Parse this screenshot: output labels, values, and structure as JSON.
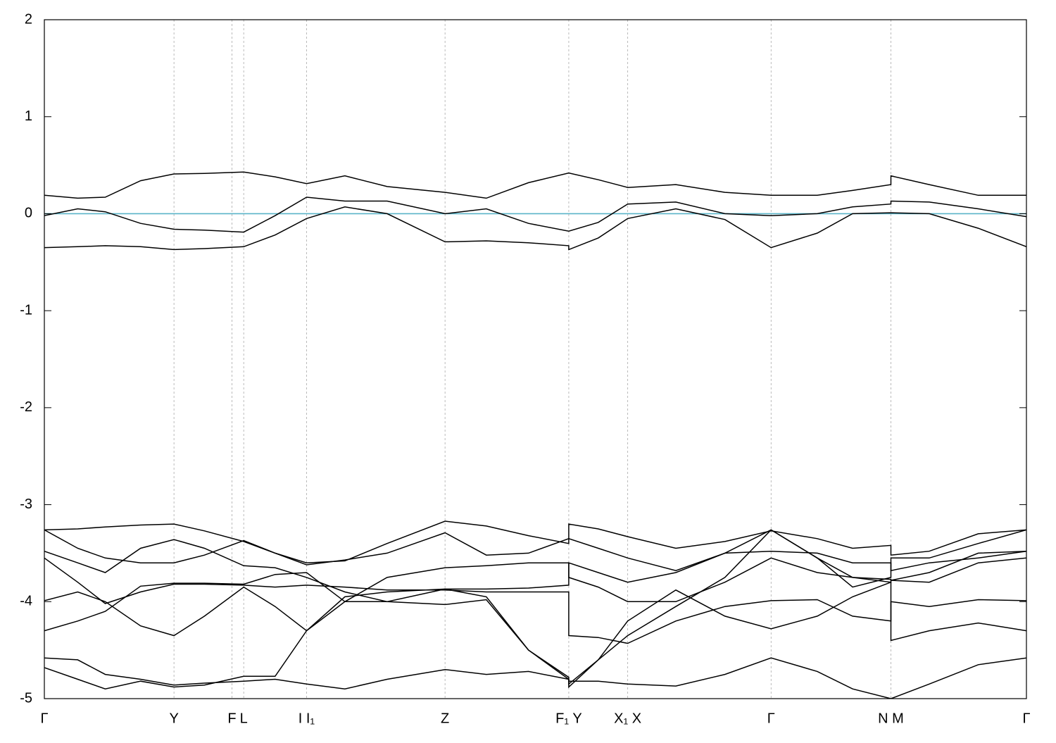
{
  "chart_data": {
    "type": "line",
    "x": [
      0,
      0.034,
      0.062,
      0.098,
      0.132,
      0.163,
      0.203,
      0.235,
      0.267,
      0.306,
      0.349,
      0.408,
      0.45,
      0.493,
      0.534,
      0.534,
      0.564,
      0.594,
      0.643,
      0.693,
      0.74,
      0.787,
      0.823,
      0.862,
      0.862,
      0.901,
      0.951,
      1
    ],
    "xlim": [
      0,
      1
    ],
    "xticks": [
      {
        "value": 0,
        "label": "Γ"
      },
      {
        "value": 0.132,
        "label": "Y"
      },
      {
        "value": 0.191,
        "label": "F"
      },
      {
        "value": 0.203,
        "label": "L"
      },
      {
        "value": 0.267,
        "label": "I  I₁"
      },
      {
        "value": 0.408,
        "label": "Z"
      },
      {
        "value": 0.534,
        "label": "F₁ Y"
      },
      {
        "value": 0.594,
        "label": "X₁ X"
      },
      {
        "value": 0.74,
        "label": "Γ"
      },
      {
        "value": 0.862,
        "label": "N M"
      },
      {
        "value": 1,
        "label": "Γ"
      }
    ],
    "ylim": [
      -5,
      2
    ],
    "yticks": [
      -5,
      -4,
      -3,
      -2,
      -1,
      0,
      1,
      2
    ],
    "grid": true,
    "hlines": [
      {
        "value": 0,
        "color": "#5ab4c8"
      }
    ],
    "series": [
      {
        "color": "#000000",
        "values": [
          0.19,
          0.16,
          0.17,
          0.34,
          0.41,
          0.415,
          0.43,
          0.38,
          0.31,
          0.39,
          0.28,
          0.22,
          0.16,
          0.32,
          0.42,
          0.42,
          0.35,
          0.27,
          0.3,
          0.22,
          0.19,
          0.19,
          0.24,
          0.3,
          0.39,
          0.3,
          0.19,
          0.19
        ]
      },
      {
        "color": "#000000",
        "values": [
          -0.02,
          0.05,
          0.02,
          -0.1,
          -0.16,
          -0.17,
          -0.19,
          -0.02,
          0.17,
          0.13,
          0.13,
          0.0,
          0.05,
          -0.1,
          -0.18,
          -0.18,
          -0.09,
          0.1,
          0.12,
          0.0,
          -0.02,
          0.0,
          0.07,
          0.1,
          0.13,
          0.12,
          0.05,
          -0.03
        ]
      },
      {
        "color": "#000000",
        "values": [
          -0.35,
          -0.34,
          -0.33,
          -0.34,
          -0.37,
          -0.36,
          -0.34,
          -0.22,
          -0.05,
          0.07,
          0.0,
          -0.29,
          -0.28,
          -0.3,
          -0.33,
          -0.37,
          -0.25,
          -0.05,
          0.05,
          -0.06,
          -0.35,
          -0.2,
          0.0,
          0.01,
          0.01,
          0.0,
          -0.15,
          -0.34
        ]
      },
      {
        "color": "#000000",
        "values": [
          -3.26,
          -3.25,
          -3.23,
          -3.21,
          -3.2,
          -3.27,
          -3.38,
          -3.5,
          -3.6,
          -3.58,
          -3.4,
          -3.17,
          -3.22,
          -3.32,
          -3.4,
          -3.2,
          -3.25,
          -3.33,
          -3.45,
          -3.38,
          -3.27,
          -3.35,
          -3.45,
          -3.42,
          -3.52,
          -3.48,
          -3.3,
          -3.26
        ]
      },
      {
        "color": "#000000",
        "values": [
          -3.26,
          -3.45,
          -3.55,
          -3.6,
          -3.6,
          -3.52,
          -3.37,
          -3.5,
          -3.62,
          -3.57,
          -3.5,
          -3.29,
          -3.52,
          -3.5,
          -3.35,
          -3.35,
          -3.45,
          -3.55,
          -3.68,
          -3.5,
          -3.26,
          -3.55,
          -3.85,
          -3.75,
          -3.55,
          -3.55,
          -3.4,
          -3.26
        ]
      },
      {
        "color": "#000000",
        "values": [
          -3.48,
          -3.6,
          -3.7,
          -3.45,
          -3.36,
          -3.45,
          -3.63,
          -3.65,
          -3.75,
          -3.9,
          -4.0,
          -3.87,
          -3.87,
          -3.86,
          -3.83,
          -3.6,
          -3.7,
          -3.8,
          -3.7,
          -3.5,
          -3.48,
          -3.5,
          -3.6,
          -3.6,
          -3.68,
          -3.6,
          -3.55,
          -3.48
        ]
      },
      {
        "color": "#000000",
        "values": [
          -3.55,
          -3.8,
          -4.02,
          -3.9,
          -3.82,
          -3.82,
          -3.83,
          -3.85,
          -3.83,
          -3.85,
          -3.88,
          -3.88,
          -3.9,
          -3.9,
          -3.9,
          -4.35,
          -4.37,
          -4.43,
          -4.2,
          -4.05,
          -3.99,
          -3.98,
          -4.15,
          -4.2,
          -4.0,
          -4.05,
          -3.98,
          -3.99
        ]
      },
      {
        "color": "#000000",
        "values": [
          -3.99,
          -3.9,
          -4.0,
          -4.25,
          -4.35,
          -4.15,
          -3.85,
          -4.05,
          -4.3,
          -4.0,
          -3.75,
          -3.65,
          -3.63,
          -3.6,
          -3.6,
          -3.75,
          -3.85,
          -4.0,
          -4.0,
          -3.8,
          -3.55,
          -3.7,
          -3.75,
          -3.77,
          -3.78,
          -3.8,
          -3.6,
          -3.55
        ]
      },
      {
        "color": "#000000",
        "values": [
          -4.3,
          -4.2,
          -4.1,
          -3.84,
          -3.81,
          -3.81,
          -3.82,
          -3.72,
          -3.7,
          -4.0,
          -4.0,
          -4.03,
          -3.98,
          -4.5,
          -4.78,
          -4.85,
          -4.6,
          -4.2,
          -3.88,
          -4.15,
          -4.28,
          -4.15,
          -3.95,
          -3.8,
          -4.4,
          -4.3,
          -4.22,
          -4.3
        ]
      },
      {
        "color": "#000000",
        "values": [
          -4.58,
          -4.6,
          -4.75,
          -4.8,
          -4.86,
          -4.84,
          -4.82,
          -4.8,
          -4.85,
          -4.9,
          -4.8,
          -4.7,
          -4.75,
          -4.72,
          -4.8,
          -4.82,
          -4.82,
          -4.85,
          -4.87,
          -4.75,
          -4.58,
          -4.72,
          -4.9,
          -5.0,
          -5.0,
          -4.85,
          -4.65,
          -4.58
        ]
      },
      {
        "color": "#000000",
        "values": [
          -4.68,
          -4.8,
          -4.9,
          -4.82,
          -4.88,
          -4.86,
          -4.77,
          -4.77,
          -4.3,
          -3.95,
          -3.9,
          -3.87,
          -3.95,
          -4.5,
          -4.8,
          -4.88,
          -4.6,
          -4.35,
          -4.05,
          -3.75,
          -3.26,
          -3.55,
          -3.75,
          -3.8,
          -3.78,
          -3.7,
          -3.5,
          -3.48
        ]
      }
    ]
  }
}
